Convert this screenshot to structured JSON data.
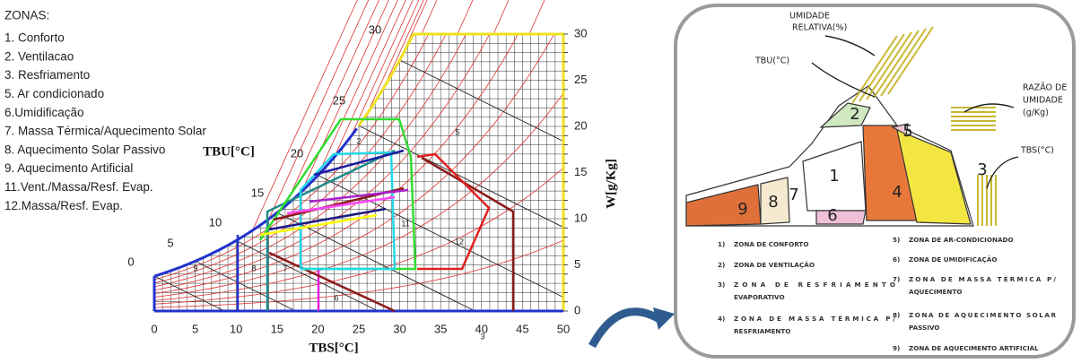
{
  "legend_title": "ZONAS:",
  "legend_items": [
    "1. Conforto",
    "2. Ventilacao",
    "3. Resfriamento",
    "5. Ar condicionado",
    "6.Umidificação",
    "7. Massa Térmica/Aquecimento Solar",
    "8. Aquecimento Solar Passivo",
    "9. Aquecimento Artificial",
    "11.Vent./Massa/Resf. Evap.",
    "12.Massa/Resf. Evap."
  ],
  "chart": {
    "x_ticks": [
      0,
      5,
      10,
      15,
      20,
      25,
      30,
      35,
      40,
      45,
      50
    ],
    "y_ticks": [
      0,
      5,
      10,
      15,
      20,
      25,
      30
    ],
    "tbu_ticks": [
      0,
      5,
      10,
      15,
      20,
      25,
      30
    ],
    "x_label": "TBS[°C]",
    "y_label": "W[g/Kg]",
    "tbu_label": "TBU[°C]",
    "zone_labels": [
      "2",
      "5",
      "7",
      "8",
      "9",
      "6",
      "3",
      "11",
      "12"
    ]
  },
  "sketch": {
    "relative_humidity": [
      "UMIDADE",
      "RELATIVA(%)"
    ],
    "tbu": "TBU(°C)",
    "humidity_ratio": [
      "RAZÃO DE",
      "UMIDADE",
      "(g/Kg)"
    ],
    "tbs": "TBS(°C)",
    "zone_numbers": [
      "2",
      "5",
      "1",
      "3",
      "4",
      "7",
      "8",
      "9",
      "6"
    ]
  },
  "sketch_legend": [
    {
      "num": "1)",
      "lines": [
        "ZONA DE CONFORTO"
      ]
    },
    {
      "num": "2)",
      "lines": [
        "ZONA DE VENTILAÇÃO"
      ]
    },
    {
      "num": "3)",
      "lines": [
        "ZONA DE RESFRIAMENTO",
        "EVAPORATIVO"
      ]
    },
    {
      "num": "4)",
      "lines": [
        "ZONA DE MASSA TÉRMICA P/",
        "RESFRIAMENTO"
      ]
    },
    {
      "num": "5)",
      "lines": [
        "ZONA DE AR-CONDICIONADO"
      ]
    },
    {
      "num": "6)",
      "lines": [
        "ZONA DE UMIDIFICAÇÃO"
      ]
    },
    {
      "num": "7)",
      "lines": [
        "ZONA DE MASSA TÉRMICA P/",
        "AQUECIMENTO"
      ]
    },
    {
      "num": "8)",
      "lines": [
        "ZONA DE AQUECIMENTO SOLAR",
        "PASSIVO"
      ]
    },
    {
      "num": "9)",
      "lines": [
        "ZONA DE AQUECIMENTO ARTIFICIAL"
      ]
    }
  ]
}
